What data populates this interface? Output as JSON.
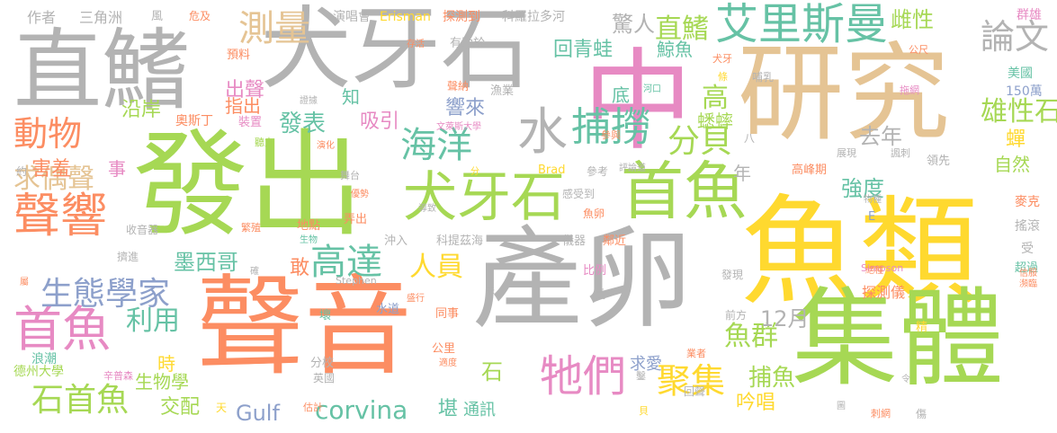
{
  "palette": {
    "green": "#a6d854",
    "gray": "#b3b3b3",
    "orange": "#fc8d62",
    "teal": "#66c2a5",
    "blue": "#8da0cb",
    "pink": "#e78ac3",
    "yellow": "#ffd92f",
    "tan": "#e5c494"
  },
  "words": [
    {
      "text": "魚類"
    },
    {
      "text": "產卵"
    },
    {
      "text": "聲音"
    },
    {
      "text": "發出"
    },
    {
      "text": "集體"
    },
    {
      "text": "研究"
    },
    {
      "text": "中"
    },
    {
      "text": "犬牙石"
    },
    {
      "text": "直鰭"
    },
    {
      "text": "首魚"
    },
    {
      "text": "犬牙石"
    },
    {
      "text": "艾里斯曼"
    },
    {
      "text": "聲響"
    },
    {
      "text": "首魚"
    },
    {
      "text": "牠們"
    },
    {
      "text": "海洋"
    },
    {
      "text": "捕撈"
    },
    {
      "text": "水"
    },
    {
      "text": "測量"
    },
    {
      "text": "動物"
    },
    {
      "text": "生態學家"
    },
    {
      "text": "石首魚"
    },
    {
      "text": "聚集"
    },
    {
      "text": "魚群"
    },
    {
      "text": "求偶聲"
    },
    {
      "text": "分貝"
    },
    {
      "text": "論文"
    },
    {
      "text": "直鰭"
    },
    {
      "text": "高達"
    },
    {
      "text": "人員"
    },
    {
      "text": "雄性石"
    },
    {
      "text": "利用"
    },
    {
      "text": "發表"
    },
    {
      "text": "corvina"
    },
    {
      "text": "Gulf"
    },
    {
      "text": "12月"
    },
    {
      "text": "強度"
    },
    {
      "text": "驚人"
    },
    {
      "text": "去年"
    },
    {
      "text": "捕魚"
    },
    {
      "text": "墨西哥"
    },
    {
      "text": "害羞"
    },
    {
      "text": "沿岸"
    },
    {
      "text": "雌性"
    },
    {
      "text": "高"
    },
    {
      "text": "蟋蟀"
    },
    {
      "text": "回青蛙"
    },
    {
      "text": "鯨魚"
    },
    {
      "text": "吸引"
    },
    {
      "text": "響來"
    },
    {
      "text": "出聲"
    },
    {
      "text": "指出"
    },
    {
      "text": "生物學"
    },
    {
      "text": "吟唱"
    },
    {
      "text": "交配"
    },
    {
      "text": "時"
    },
    {
      "text": "石"
    },
    {
      "text": "堪"
    },
    {
      "text": "通訊"
    },
    {
      "text": "敢"
    },
    {
      "text": "事"
    },
    {
      "text": "知"
    },
    {
      "text": "底"
    },
    {
      "text": "年"
    },
    {
      "text": "蟬"
    },
    {
      "text": "自然"
    },
    {
      "text": "探測儀"
    },
    {
      "text": "求愛"
    },
    {
      "text": "作者"
    },
    {
      "text": "三角洲"
    },
    {
      "text": "演唱會"
    },
    {
      "text": "探測到"
    },
    {
      "text": "科羅拉多河"
    },
    {
      "text": "群雄"
    },
    {
      "text": "Erisman"
    },
    {
      "text": "預料"
    },
    {
      "text": "有助於"
    },
    {
      "text": "美國"
    },
    {
      "text": "150萬"
    },
    {
      "text": "奧斯丁"
    },
    {
      "text": "裝置"
    },
    {
      "text": "漁業"
    },
    {
      "text": "聲納"
    },
    {
      "text": "哺乳"
    },
    {
      "text": "領先"
    },
    {
      "text": "高峰期"
    },
    {
      "text": "參考"
    },
    {
      "text": "Brad"
    },
    {
      "text": "收音器"
    },
    {
      "text": "擠進"
    },
    {
      "text": "地點"
    },
    {
      "text": "弄出"
    },
    {
      "text": "儀器"
    },
    {
      "text": "鄰近"
    },
    {
      "text": "科提茲海"
    },
    {
      "text": "沖入"
    },
    {
      "text": "比例"
    },
    {
      "text": "長"
    },
    {
      "text": "感受到"
    },
    {
      "text": "魚卵"
    },
    {
      "text": "發現"
    },
    {
      "text": "受"
    },
    {
      "text": "超過"
    },
    {
      "text": "搖滾"
    },
    {
      "text": "麥克"
    },
    {
      "text": "前方"
    },
    {
      "text": "回聲"
    },
    {
      "text": "公里"
    },
    {
      "text": "同事"
    },
    {
      "text": "浪潮"
    },
    {
      "text": "德州大學"
    },
    {
      "text": "壞"
    },
    {
      "text": "水道"
    },
    {
      "text": "分校"
    },
    {
      "text": "英國"
    },
    {
      "text": "天"
    },
    {
      "text": "估計"
    },
    {
      "text": "Stephen"
    },
    {
      "text": "Simpson"
    },
    {
      "text": "E"
    },
    {
      "text": "舞台"
    },
    {
      "text": "參與"
    },
    {
      "text": "文萊斯大學"
    },
    {
      "text": "證據"
    },
    {
      "text": "存活"
    },
    {
      "text": "河口"
    },
    {
      "text": "演化"
    },
    {
      "text": "聽力"
    },
    {
      "text": "風"
    },
    {
      "text": "危及"
    },
    {
      "text": "約"
    },
    {
      "text": "公尺"
    },
    {
      "text": "犬牙"
    },
    {
      "text": "條"
    },
    {
      "text": "拖網"
    },
    {
      "text": "展現"
    },
    {
      "text": "諷刺"
    },
    {
      "text": "八"
    },
    {
      "text": "評論道"
    },
    {
      "text": "優勢"
    },
    {
      "text": "導致"
    },
    {
      "text": "繁殖"
    },
    {
      "text": "生物"
    },
    {
      "text": "確"
    },
    {
      "text": "盛行"
    },
    {
      "text": "未"
    },
    {
      "text": "適度"
    },
    {
      "text": "辛普森"
    },
    {
      "text": "業者"
    },
    {
      "text": "精"
    },
    {
      "text": "鑿"
    },
    {
      "text": "貝"
    },
    {
      "text": "圖"
    },
    {
      "text": "刺網"
    },
    {
      "text": "傷"
    },
    {
      "text": "令"
    },
    {
      "text": "物種"
    },
    {
      "text": "絕種"
    },
    {
      "text": "瀕臨"
    },
    {
      "text": "信服"
    },
    {
      "text": "分"
    },
    {
      "text": "屬"
    }
  ]
}
